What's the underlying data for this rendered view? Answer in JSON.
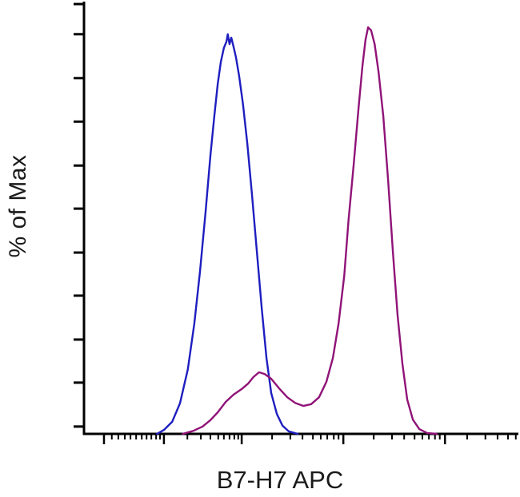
{
  "chart_data": {
    "type": "line",
    "subtype": "flow-cytometry-histogram-overlay",
    "title": "",
    "xlabel": "B7-H7 APC",
    "ylabel": "% of Max",
    "x_scale": "log-biexponential",
    "ylim": [
      0,
      100
    ],
    "grid": false,
    "legend": null,
    "axes": {
      "y_tick_positions_pct": [
        1.7,
        11.9,
        21.9,
        32.1,
        42.1,
        52.3,
        62.3,
        72.5,
        82.6,
        92.8,
        99.8
      ],
      "x_major_tick_positions_pct": [
        4.6,
        18.4,
        36.3,
        59.7,
        83.1
      ],
      "x_minor_tick_positions_pct": [
        6.4,
        7.9,
        9.4,
        10.7,
        12.0,
        13.3,
        14.4,
        15.5,
        16.6,
        17.5,
        23.8,
        26.9,
        29.1,
        30.9,
        32.2,
        33.5,
        34.6,
        35.5,
        43.3,
        47.5,
        50.3,
        52.7,
        54.5,
        56.0,
        57.5,
        58.6,
        66.7,
        70.9,
        73.7,
        76.1,
        77.9,
        79.4,
        80.8,
        81.9,
        88.2,
        92.4,
        95.2,
        97.6,
        99.4
      ]
    },
    "series": [
      {
        "name": "blue-histogram",
        "color": "#1e1ec0",
        "peak_pct_of_max": 93,
        "points": [
          [
            16.8,
            0
          ],
          [
            18.4,
            0.9
          ],
          [
            20.3,
            2.8
          ],
          [
            22.1,
            7.1
          ],
          [
            23.9,
            15.0
          ],
          [
            25.4,
            25.6
          ],
          [
            26.7,
            37.7
          ],
          [
            28.0,
            51.6
          ],
          [
            29.1,
            64.6
          ],
          [
            30.0,
            73.8
          ],
          [
            30.8,
            81.3
          ],
          [
            31.5,
            86.3
          ],
          [
            32.2,
            89.6
          ],
          [
            32.8,
            91.1
          ],
          [
            33.1,
            92.8
          ],
          [
            33.5,
            90.5
          ],
          [
            33.9,
            92.0
          ],
          [
            34.4,
            90.0
          ],
          [
            35.0,
            87.4
          ],
          [
            35.7,
            83.1
          ],
          [
            36.6,
            76.6
          ],
          [
            37.6,
            67.3
          ],
          [
            38.7,
            55.3
          ],
          [
            39.8,
            42.3
          ],
          [
            40.9,
            29.3
          ],
          [
            42.0,
            17.6
          ],
          [
            43.1,
            9.5
          ],
          [
            44.4,
            4.6
          ],
          [
            45.7,
            1.9
          ],
          [
            47.1,
            0.6
          ],
          [
            49.2,
            0
          ]
        ]
      },
      {
        "name": "magenta-histogram",
        "color": "#901378",
        "peak_pct_of_max": 95,
        "points": [
          [
            22.7,
            0
          ],
          [
            25.2,
            0.7
          ],
          [
            27.3,
            1.7
          ],
          [
            29.1,
            3.2
          ],
          [
            30.8,
            5.0
          ],
          [
            32.6,
            7.4
          ],
          [
            34.4,
            9.1
          ],
          [
            36.3,
            10.4
          ],
          [
            37.8,
            11.7
          ],
          [
            39.0,
            13.2
          ],
          [
            40.3,
            14.3
          ],
          [
            41.6,
            13.9
          ],
          [
            43.1,
            12.8
          ],
          [
            44.9,
            10.6
          ],
          [
            46.8,
            8.5
          ],
          [
            48.6,
            7.2
          ],
          [
            50.5,
            6.5
          ],
          [
            52.3,
            6.9
          ],
          [
            54.1,
            8.5
          ],
          [
            55.8,
            12.1
          ],
          [
            57.3,
            17.6
          ],
          [
            58.6,
            25.6
          ],
          [
            59.9,
            36.7
          ],
          [
            60.9,
            49.7
          ],
          [
            62.1,
            62.7
          ],
          [
            63.2,
            75.7
          ],
          [
            64.1,
            85.5
          ],
          [
            64.8,
            91.5
          ],
          [
            65.4,
            94.4
          ],
          [
            66.1,
            93.7
          ],
          [
            66.9,
            90.5
          ],
          [
            67.8,
            84.0
          ],
          [
            68.9,
            73.8
          ],
          [
            70.0,
            59.0
          ],
          [
            71.1,
            42.3
          ],
          [
            72.2,
            27.5
          ],
          [
            73.3,
            16.3
          ],
          [
            74.4,
            8.0
          ],
          [
            75.7,
            3.3
          ],
          [
            77.2,
            1.1
          ],
          [
            79.0,
            0.2
          ],
          [
            81.2,
            0
          ]
        ]
      }
    ]
  }
}
